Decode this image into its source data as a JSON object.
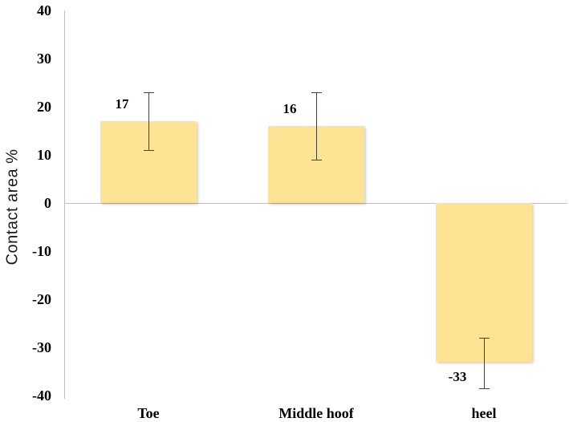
{
  "chart_data": {
    "type": "bar",
    "title": "",
    "categories": [
      "Toe",
      "Middle hoof",
      "heel"
    ],
    "values": [
      17,
      16,
      -33
    ],
    "data_labels": [
      "17",
      "16",
      "-33"
    ],
    "error_bars": [
      {
        "high": 23,
        "low": 11
      },
      {
        "high": 23,
        "low": 9
      },
      {
        "high": -28,
        "low": -38.5
      }
    ],
    "ylabel": "Contact area %",
    "xlabel": "",
    "ylim": [
      -40,
      40
    ],
    "yticks": [
      40,
      30,
      20,
      10,
      0,
      -10,
      -20,
      -30,
      -40
    ],
    "grid": false,
    "legend": "none",
    "colors": {
      "bar_fill": "#fde494",
      "axis_line": "#bfbfbf",
      "error_bar": "#404040",
      "text": "#000000"
    }
  }
}
